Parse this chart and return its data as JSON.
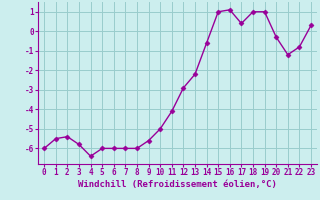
{
  "x": [
    0,
    1,
    2,
    3,
    4,
    5,
    6,
    7,
    8,
    9,
    10,
    11,
    12,
    13,
    14,
    15,
    16,
    17,
    18,
    19,
    20,
    21,
    22,
    23
  ],
  "y": [
    -6.0,
    -5.5,
    -5.4,
    -5.8,
    -6.4,
    -6.0,
    -6.0,
    -6.0,
    -6.0,
    -5.6,
    -5.0,
    -4.1,
    -2.9,
    -2.2,
    -0.6,
    1.0,
    1.1,
    0.4,
    1.0,
    1.0,
    -0.3,
    -1.2,
    -0.8,
    0.3
  ],
  "line_color": "#990099",
  "marker": "D",
  "marker_size": 2.5,
  "bg_color": "#cceeee",
  "grid_color": "#99cccc",
  "xlabel": "Windchill (Refroidissement éolien,°C)",
  "ylabel": "",
  "ylim": [
    -6.8,
    1.5
  ],
  "xlim": [
    -0.5,
    23.5
  ],
  "yticks": [
    -6,
    -5,
    -4,
    -3,
    -2,
    -1,
    0,
    1
  ],
  "xticks": [
    0,
    1,
    2,
    3,
    4,
    5,
    6,
    7,
    8,
    9,
    10,
    11,
    12,
    13,
    14,
    15,
    16,
    17,
    18,
    19,
    20,
    21,
    22,
    23
  ],
  "tick_label_fontsize": 5.5,
  "xlabel_fontsize": 6.5,
  "line_width": 1.0
}
